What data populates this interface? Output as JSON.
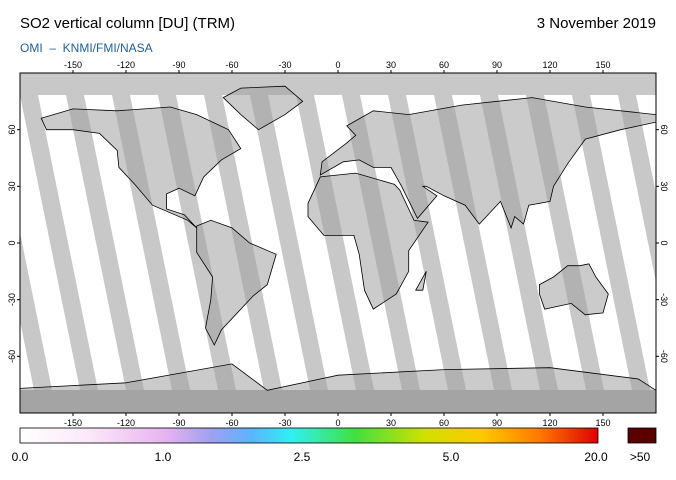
{
  "header": {
    "title": "SO2 vertical column [DU] (TRM)",
    "date": "3 November 2019",
    "credit": "OMI  –  KNMI/FMI/NASA"
  },
  "map": {
    "lon_labels": [
      "-150",
      "-120",
      "-90",
      "-60",
      "-30",
      "0",
      "30",
      "60",
      "90",
      "120",
      "150"
    ],
    "lat_labels": [
      "60",
      "30",
      "0",
      "-30",
      "-60"
    ]
  },
  "colorbar": {
    "labels": [
      "0.0",
      "1.0",
      "2.5",
      "5.0",
      "20.0"
    ],
    "overflow_label": ">50"
  }
}
